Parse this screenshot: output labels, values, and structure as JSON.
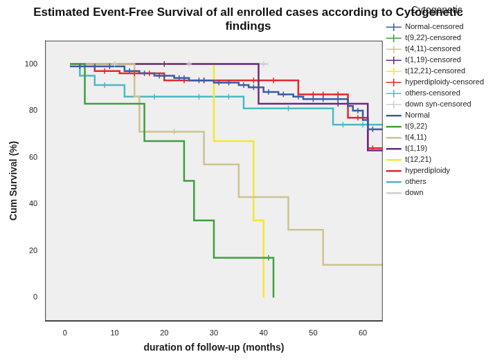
{
  "chart_data": {
    "type": "line",
    "title": "Estimated Event-Free Survival of all enrolled cases according to Cytogenetic findings",
    "x_label": "duration of follow-up (months)",
    "y_label": "Cum Survival (%)",
    "legend_title": "Cytogenetic",
    "legend": "right",
    "grid": false,
    "xlim": [
      -4,
      64
    ],
    "xticks": [
      0,
      10,
      20,
      30,
      40,
      50,
      60
    ],
    "ylim": [
      -10,
      110
    ],
    "yticks": [
      0,
      20,
      40,
      60,
      80,
      100
    ],
    "series": [
      {
        "name": "Normal",
        "color": "#3b5ba5",
        "type": "line",
        "line_style": "step",
        "x": [
          1,
          12,
          15,
          18,
          22,
          25,
          30,
          35,
          37,
          40,
          43,
          46,
          48,
          57,
          58,
          60,
          61,
          64
        ],
        "values": [
          99,
          97,
          96,
          95,
          94,
          93,
          92,
          91,
          90,
          88,
          87,
          86,
          85,
          82,
          80,
          76,
          72,
          72
        ]
      },
      {
        "name": "t(9,22)",
        "color": "#3ea03a",
        "type": "line",
        "line_style": "step",
        "x": [
          1,
          4,
          16,
          24,
          26,
          30,
          42
        ],
        "values": [
          100,
          83,
          67,
          50,
          33,
          17,
          0
        ]
      },
      {
        "name": "t(4,11)",
        "color": "#cdc38e",
        "type": "line",
        "line_style": "step",
        "x": [
          1,
          14,
          15,
          28,
          35,
          45,
          52,
          64
        ],
        "values": [
          100,
          86,
          71,
          57,
          43,
          29,
          14,
          14
        ]
      },
      {
        "name": "t(1,19)",
        "color": "#6a2a83",
        "type": "line",
        "line_style": "step",
        "x": [
          1,
          39,
          61,
          64
        ],
        "values": [
          100,
          83,
          63,
          63
        ]
      },
      {
        "name": "t(12,21)",
        "color": "#f2e830",
        "type": "line",
        "line_style": "step",
        "x": [
          1,
          30,
          38,
          40
        ],
        "values": [
          100,
          67,
          33,
          0
        ]
      },
      {
        "name": "hyperdiploidy",
        "color": "#e8262b",
        "type": "line",
        "line_style": "step",
        "x": [
          1,
          6,
          11,
          20,
          47,
          57,
          61,
          64
        ],
        "values": [
          100,
          97,
          96,
          93,
          87,
          77,
          64,
          64
        ]
      },
      {
        "name": "others",
        "color": "#4cb8c4",
        "type": "line",
        "line_style": "step",
        "x": [
          1,
          3,
          6,
          12,
          36,
          54,
          64
        ],
        "values": [
          100,
          95,
          91,
          86,
          81,
          74,
          74
        ]
      },
      {
        "name": "down",
        "color": "#cfcfcf",
        "type": "line",
        "line_style": "step",
        "x": [
          1,
          41
        ],
        "values": [
          100,
          100
        ]
      },
      {
        "name": "Normal-censored",
        "color": "#3b5ba5",
        "type": "scatter",
        "marker": "cross",
        "x": [
          3,
          6,
          9,
          13,
          16,
          19,
          20,
          23,
          24,
          27,
          28,
          31,
          33,
          36,
          38,
          41,
          44,
          47,
          50,
          52,
          55,
          59,
          62
        ],
        "values": [
          99,
          99,
          99,
          97,
          96,
          95,
          95,
          94,
          94,
          93,
          93,
          92,
          92,
          91,
          90,
          88,
          87,
          86,
          85,
          85,
          85,
          80,
          72
        ]
      },
      {
        "name": "t(9,22)-censored",
        "color": "#3ea03a",
        "type": "scatter",
        "marker": "cross",
        "x": [
          41
        ],
        "values": [
          17
        ]
      },
      {
        "name": "t(4,11)-censored",
        "color": "#cdc38e",
        "type": "scatter",
        "marker": "cross",
        "x": [
          22
        ],
        "values": [
          71
        ]
      },
      {
        "name": "t(1,19)-censored",
        "color": "#6a2a83",
        "type": "scatter",
        "marker": "cross",
        "x": [
          20,
          55
        ],
        "values": [
          100,
          83
        ]
      },
      {
        "name": "t(12,21)-censored",
        "color": "#f2e830",
        "type": "scatter",
        "marker": "cross",
        "x": [
          20
        ],
        "values": [
          100
        ]
      },
      {
        "name": "hyperdiploidy-censored",
        "color": "#e8262b",
        "type": "scatter",
        "marker": "cross",
        "x": [
          8,
          14,
          17,
          24,
          28,
          38,
          42,
          50,
          52,
          55,
          59,
          62
        ],
        "values": [
          97,
          96,
          96,
          93,
          93,
          93,
          93,
          87,
          87,
          87,
          77,
          64
        ]
      },
      {
        "name": "others-censored",
        "color": "#4cb8c4",
        "type": "scatter",
        "marker": "cross",
        "x": [
          8,
          18,
          27,
          33,
          45,
          56,
          60
        ],
        "values": [
          91,
          86,
          86,
          86,
          81,
          74,
          74
        ]
      },
      {
        "name": "down syn-censored",
        "color": "#cfcfcf",
        "type": "scatter",
        "marker": "cross",
        "x": [
          10,
          25,
          40
        ],
        "values": [
          100,
          100,
          100
        ]
      }
    ]
  }
}
